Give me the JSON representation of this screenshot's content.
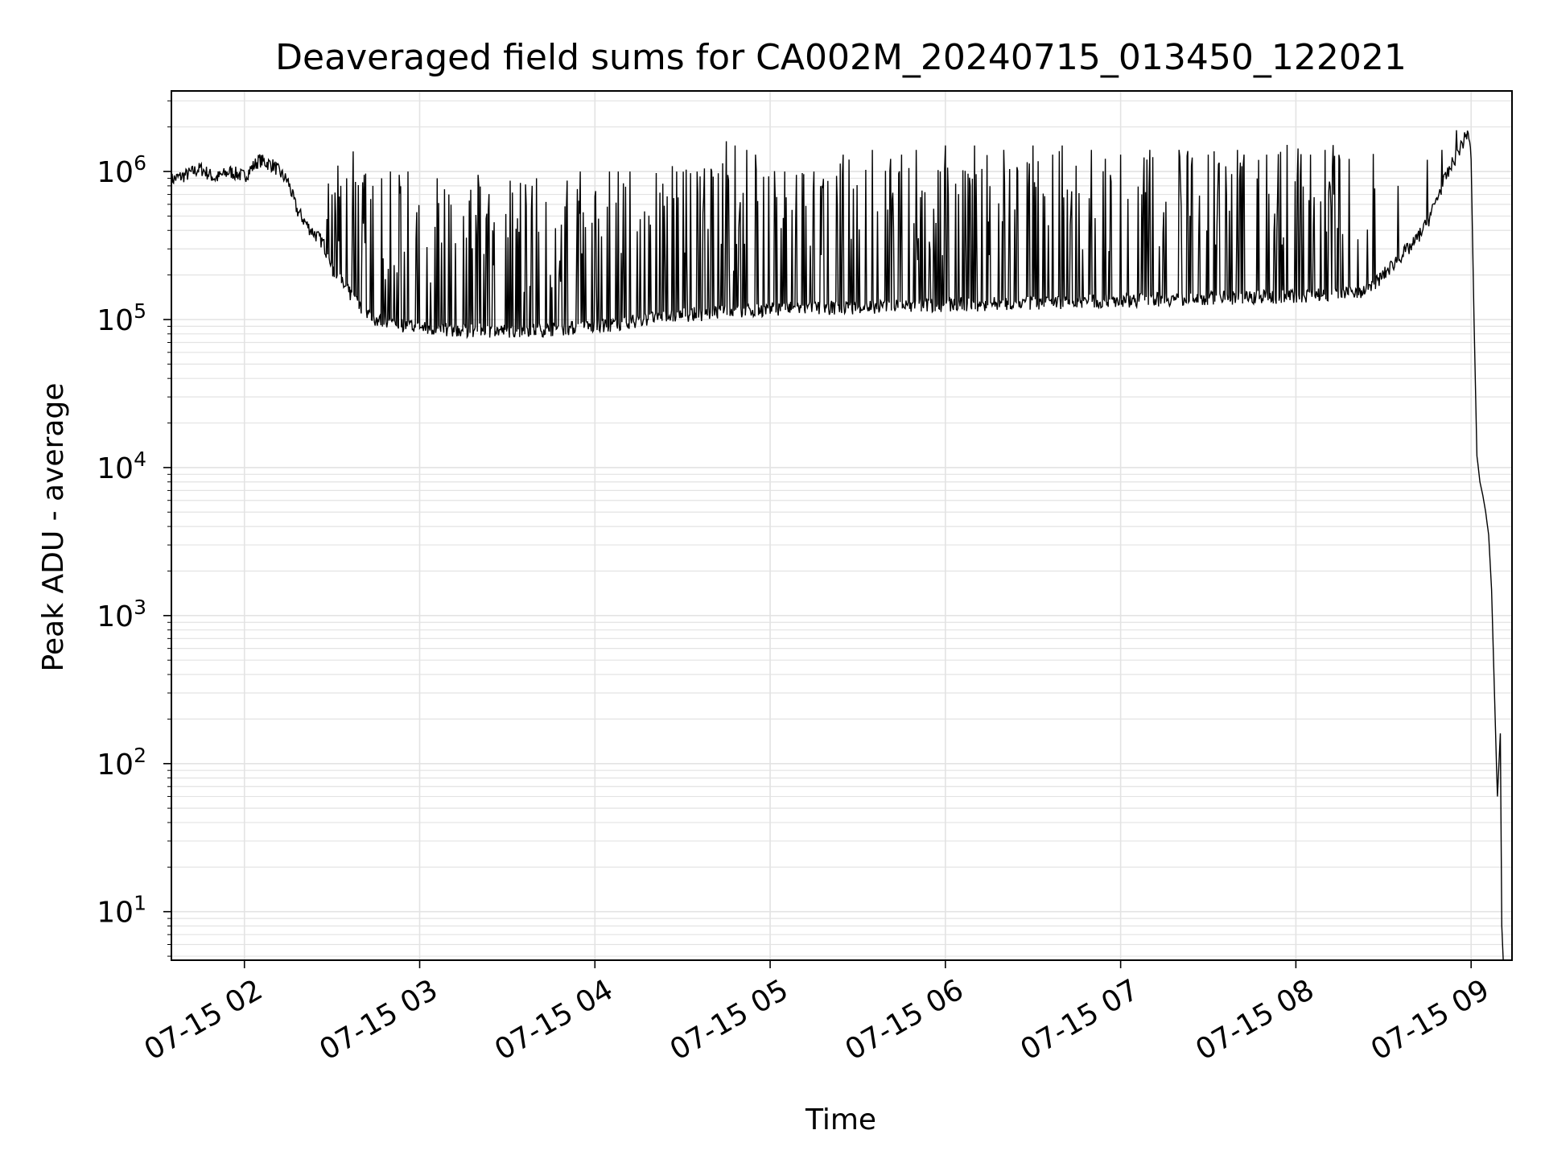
{
  "chart_data": {
    "type": "line",
    "title": "Deaveraged field sums for CA002M_20240715_013450_122021",
    "xlabel": "Time",
    "ylabel": "Peak ADU - average",
    "y_scale": "log",
    "ylim": [
      4.7,
      3500000
    ],
    "xlim": [
      "07-15 01:35",
      "07-15 09:14"
    ],
    "grid": true,
    "line_color": "#000000",
    "grid_color": "#e3e3e3",
    "x_ticks": [
      {
        "value": "07-15 02:00",
        "label": "07-15 02"
      },
      {
        "value": "07-15 03:00",
        "label": "07-15 03"
      },
      {
        "value": "07-15 04:00",
        "label": "07-15 04"
      },
      {
        "value": "07-15 05:00",
        "label": "07-15 05"
      },
      {
        "value": "07-15 06:00",
        "label": "07-15 06"
      },
      {
        "value": "07-15 07:00",
        "label": "07-15 07"
      },
      {
        "value": "07-15 08:00",
        "label": "07-15 08"
      },
      {
        "value": "07-15 09:00",
        "label": "07-15 09"
      }
    ],
    "y_ticks": [
      {
        "value": 10,
        "base": "10",
        "exp": "1"
      },
      {
        "value": 100,
        "base": "10",
        "exp": "2"
      },
      {
        "value": 1000,
        "base": "10",
        "exp": "3"
      },
      {
        "value": 10000,
        "base": "10",
        "exp": "4"
      },
      {
        "value": 100000,
        "base": "10",
        "exp": "5"
      },
      {
        "value": 1000000,
        "base": "10",
        "exp": "6"
      }
    ],
    "series": [
      {
        "baseline": [
          [
            "07-15 01:35",
            880000
          ],
          [
            "07-15 01:40",
            950000
          ],
          [
            "07-15 01:45",
            1050000
          ],
          [
            "07-15 01:50",
            900000
          ],
          [
            "07-15 01:55",
            1000000
          ],
          [
            "07-15 02:00",
            930000
          ],
          [
            "07-15 02:05",
            1200000
          ],
          [
            "07-15 02:10",
            1100000
          ],
          [
            "07-15 02:15",
            850000
          ],
          [
            "07-15 02:18",
            550000
          ],
          [
            "07-15 02:22",
            420000
          ],
          [
            "07-15 02:27",
            330000
          ],
          [
            "07-15 02:30",
            220000
          ],
          [
            "07-15 02:35",
            160000
          ],
          [
            "07-15 02:40",
            120000
          ],
          [
            "07-15 02:45",
            100000
          ],
          [
            "07-15 02:50",
            95000
          ],
          [
            "07-15 03:00",
            88000
          ],
          [
            "07-15 03:15",
            85000
          ],
          [
            "07-15 03:30",
            84000
          ],
          [
            "07-15 03:45",
            86000
          ],
          [
            "07-15 04:00",
            90000
          ],
          [
            "07-15 04:10",
            95000
          ],
          [
            "07-15 04:20",
            103000
          ],
          [
            "07-15 04:30",
            108000
          ],
          [
            "07-15 04:45",
            112000
          ],
          [
            "07-15 05:00",
            118000
          ],
          [
            "07-15 05:15",
            120000
          ],
          [
            "07-15 05:30",
            122000
          ],
          [
            "07-15 05:45",
            124000
          ],
          [
            "07-15 06:00",
            126000
          ],
          [
            "07-15 06:15",
            128000
          ],
          [
            "07-15 06:30",
            130000
          ],
          [
            "07-15 06:45",
            132000
          ],
          [
            "07-15 07:00",
            135000
          ],
          [
            "07-15 07:15",
            138000
          ],
          [
            "07-15 07:30",
            140000
          ],
          [
            "07-15 07:45",
            142000
          ],
          [
            "07-15 08:00",
            145000
          ],
          [
            "07-15 08:15",
            150000
          ],
          [
            "07-15 08:25",
            160000
          ],
          [
            "07-15 08:30",
            200000
          ],
          [
            "07-15 08:35",
            260000
          ],
          [
            "07-15 08:40",
            320000
          ],
          [
            "07-15 08:45",
            450000
          ],
          [
            "07-15 08:50",
            800000
          ],
          [
            "07-15 08:55",
            1300000
          ],
          [
            "07-15 08:58",
            1700000
          ],
          [
            "07-15 08:59",
            1900000
          ],
          [
            "07-15 09:00",
            1200000
          ],
          [
            "07-15 09:01",
            100000
          ],
          [
            "07-15 09:02",
            12000
          ],
          [
            "07-15 09:03",
            8000
          ],
          [
            "07-15 09:04",
            6500
          ],
          [
            "07-15 09:05",
            5000
          ],
          [
            "07-15 09:06",
            3500
          ],
          [
            "07-15 09:07",
            1500
          ],
          [
            "07-15 09:08",
            300
          ],
          [
            "07-15 09:09",
            60
          ],
          [
            "07-15 09:10",
            160
          ],
          [
            "07-15 09:10:30",
            8
          ],
          [
            "07-15 09:11",
            4.7
          ]
        ],
        "spikes": [
          [
            "07-15 02:30",
            700000
          ],
          [
            "07-15 02:33",
            800000
          ],
          [
            "07-15 02:35",
            900000
          ],
          [
            "07-15 02:38",
            850000
          ],
          [
            "07-15 02:41",
            950000
          ],
          [
            "07-15 02:44",
            800000
          ],
          [
            "07-15 02:47",
            900000
          ],
          [
            "07-15 02:50",
            1000000
          ],
          [
            "07-15 02:53",
            950000
          ],
          [
            "07-15 02:56",
            1000000
          ],
          [
            "07-15 03:06",
            900000
          ],
          [
            "07-15 03:10",
            700000
          ],
          [
            "07-15 03:15",
            500000
          ],
          [
            "07-15 03:20",
            950000
          ],
          [
            "07-15 03:25",
            400000
          ],
          [
            "07-15 03:40",
            900000
          ],
          [
            "07-15 03:48",
            250000
          ],
          [
            "07-15 03:55",
            1000000
          ],
          [
            "07-15 04:05",
            1000000
          ],
          [
            "07-15 04:08",
            1000000
          ],
          [
            "07-15 04:12",
            1000000
          ],
          [
            "07-15 04:28",
            1000000
          ],
          [
            "07-15 04:35",
            1000000
          ],
          [
            "07-15 04:40",
            1000000
          ],
          [
            "07-15 04:45",
            1600000
          ],
          [
            "07-15 04:48",
            1500000
          ],
          [
            "07-15 04:52",
            1400000
          ],
          [
            "07-15 04:55",
            1300000
          ],
          [
            "07-15 05:05",
            1000000
          ],
          [
            "07-15 05:15",
            1000000
          ],
          [
            "07-15 05:25",
            1300000
          ],
          [
            "07-15 05:35",
            1400000
          ],
          [
            "07-15 05:45",
            1300000
          ],
          [
            "07-15 05:50",
            1400000
          ],
          [
            "07-15 06:00",
            1500000
          ],
          [
            "07-15 06:10",
            1500000
          ],
          [
            "07-15 06:20",
            1400000
          ],
          [
            "07-15 06:30",
            1500000
          ],
          [
            "07-15 06:40",
            1500000
          ],
          [
            "07-15 06:50",
            1400000
          ],
          [
            "07-15 07:00",
            1300000
          ],
          [
            "07-15 07:10",
            1400000
          ],
          [
            "07-15 07:20",
            1400000
          ],
          [
            "07-15 07:30",
            1300000
          ],
          [
            "07-15 07:40",
            1400000
          ],
          [
            "07-15 07:50",
            1300000
          ],
          [
            "07-15 08:05",
            1300000
          ],
          [
            "07-15 08:10",
            1400000
          ],
          [
            "07-15 08:15",
            1200000
          ],
          [
            "07-15 08:35",
            800000
          ],
          [
            "07-15 08:45",
            1200000
          ],
          [
            "07-15 08:50",
            1400000
          ],
          [
            "07-15 08:55",
            1900000
          ]
        ]
      }
    ]
  }
}
